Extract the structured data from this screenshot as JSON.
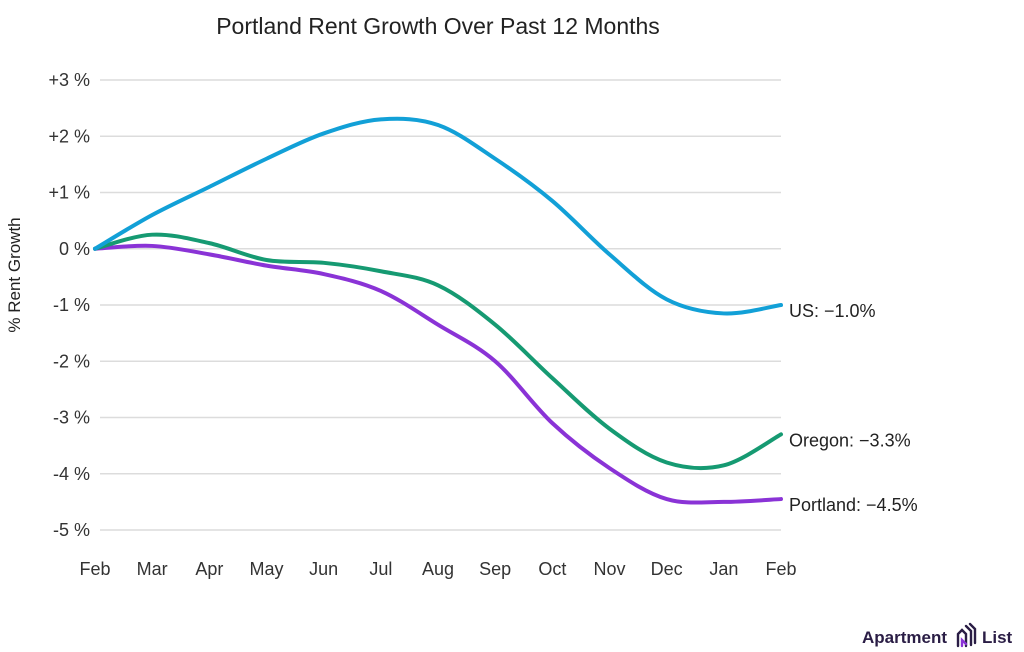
{
  "chart_data": {
    "type": "line",
    "title": "Portland Rent Growth Over Past 12 Months",
    "xlabel": "",
    "ylabel": "% Rent Growth",
    "categories": [
      "Feb",
      "Mar",
      "Apr",
      "May",
      "Jun",
      "Jul",
      "Aug",
      "Sep",
      "Oct",
      "Nov",
      "Dec",
      "Jan",
      "Feb"
    ],
    "yticks": [
      "+3 %",
      "+2 %",
      "+1 %",
      "0 %",
      "-1 %",
      "-2 %",
      "-3 %",
      "-4 %",
      "-5 %"
    ],
    "ylim": [
      -5,
      3
    ],
    "grid": true,
    "series": [
      {
        "name": "US",
        "end_label": "US: −1.0%",
        "color": "#12a0d7",
        "values": [
          0,
          0.6,
          1.1,
          1.6,
          2.05,
          2.3,
          2.2,
          1.6,
          0.85,
          -0.1,
          -0.9,
          -1.15,
          -1.0
        ]
      },
      {
        "name": "Oregon",
        "end_label": "Oregon: −3.3%",
        "color": "#169a72",
        "values": [
          0,
          0.25,
          0.1,
          -0.2,
          -0.25,
          -0.4,
          -0.65,
          -1.35,
          -2.3,
          -3.2,
          -3.8,
          -3.85,
          -3.3
        ]
      },
      {
        "name": "Portland",
        "end_label": "Portland: −4.5%",
        "color": "#8a33d6",
        "values": [
          0,
          0.05,
          -0.1,
          -0.3,
          -0.45,
          -0.75,
          -1.35,
          -2.0,
          -3.1,
          -3.9,
          -4.45,
          -4.5,
          -4.45
        ]
      }
    ]
  },
  "logo": {
    "text_left": "Apartment",
    "text_right": "List",
    "color": "#2a1d45"
  }
}
